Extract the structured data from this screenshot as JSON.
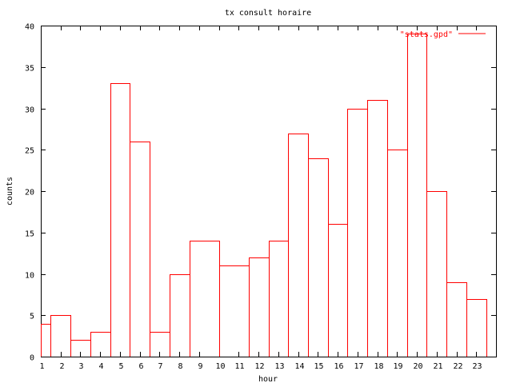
{
  "chart_data": {
    "type": "bar",
    "style": "histeps",
    "title": "tx consult horaire",
    "xlabel": "hour",
    "ylabel": "counts",
    "xlim": [
      1,
      24
    ],
    "ylim": [
      0,
      40
    ],
    "xticks": [
      1,
      2,
      3,
      4,
      5,
      6,
      7,
      8,
      9,
      10,
      11,
      12,
      13,
      14,
      15,
      16,
      17,
      18,
      19,
      20,
      21,
      22,
      23
    ],
    "yticks": [
      0,
      5,
      10,
      15,
      20,
      25,
      30,
      35,
      40
    ],
    "grid": false,
    "legend_position": "top-right",
    "series": [
      {
        "name": "\"stats.gpd\"",
        "color": "#ff0000",
        "x": [
          1,
          2,
          3,
          4,
          5,
          6,
          7,
          8,
          9,
          11,
          12,
          13,
          14,
          15,
          16,
          17,
          18,
          19,
          20,
          21,
          22,
          23
        ],
        "values": [
          4,
          5,
          2,
          3,
          33,
          26,
          3,
          10,
          14,
          11,
          12,
          14,
          27,
          24,
          16,
          30,
          31,
          25,
          39,
          20,
          9,
          7
        ]
      }
    ]
  }
}
